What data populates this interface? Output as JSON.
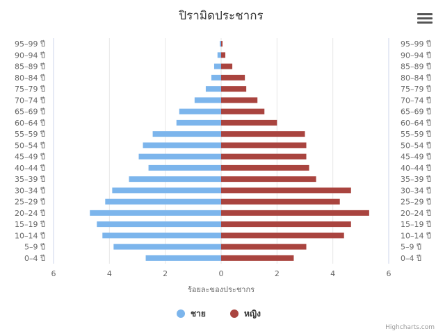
{
  "chart_data": {
    "type": "bar",
    "title": "ปิรามิดประชากร",
    "xlabel": "ร้อยละของประชากร",
    "categories": [
      "0–4 ปี",
      "5–9 ปี",
      "10–14 ปี",
      "15–19 ปี",
      "20–24 ปี",
      "25–29 ปี",
      "30–34 ปี",
      "35–39 ปี",
      "40–44 ปี",
      "45–49 ปี",
      "50–54 ปี",
      "55–59 ปี",
      "60–64 ปี",
      "65–69 ปี",
      "70–74 ปี",
      "75–79 ปี",
      "80–84 ปี",
      "85–89 ปี",
      "90–94 ปี",
      "95–99 ปี"
    ],
    "series": [
      {
        "name": "ชาย",
        "color": "#7cb5ec",
        "values": [
          -2.7,
          -3.85,
          -4.25,
          -4.45,
          -4.7,
          -4.15,
          -3.9,
          -3.3,
          -2.6,
          -2.95,
          -2.8,
          -2.45,
          -1.6,
          -1.5,
          -0.95,
          -0.55,
          -0.35,
          -0.25,
          -0.13,
          -0.05
        ]
      },
      {
        "name": "หญิง",
        "color": "#a9443f",
        "values": [
          2.6,
          3.05,
          4.4,
          4.65,
          5.3,
          4.25,
          4.65,
          3.4,
          3.15,
          3.05,
          3.05,
          3.0,
          2.0,
          1.55,
          1.3,
          0.9,
          0.85,
          0.4,
          0.15,
          0.05
        ]
      }
    ],
    "xaxis_ticks": [
      "6",
      "4",
      "2",
      "0",
      "2",
      "4",
      "6"
    ],
    "xlim": [
      -6,
      6
    ],
    "legend_position": "bottom-center",
    "grid": true
  },
  "credits": "Highcharts.com",
  "menu_icon": "hamburger-menu-icon"
}
